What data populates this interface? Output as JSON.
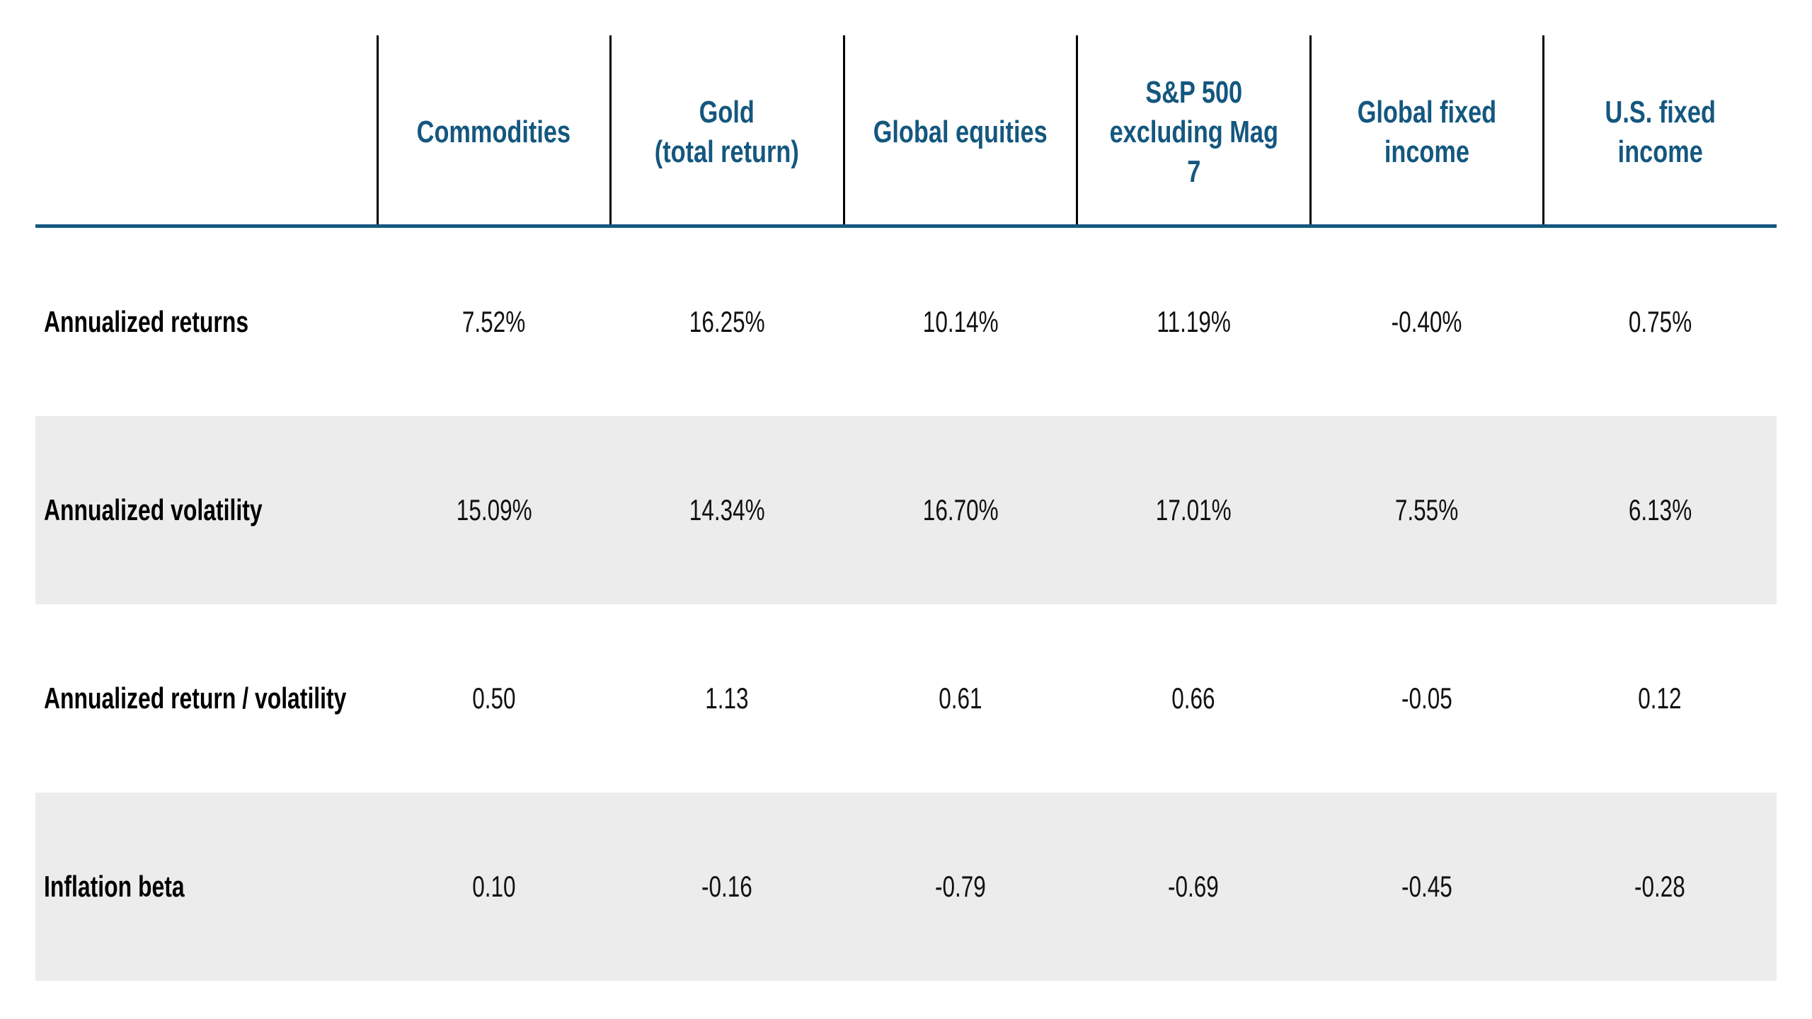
{
  "table": {
    "columns": [
      "Commodities",
      "Gold\n(total return)",
      "Global equities",
      "S&P 500\nexcluding Mag 7",
      "Global fixed\nincome",
      "U.S. fixed income"
    ],
    "rows": [
      {
        "label": "Annualized returns",
        "values": [
          "7.52%",
          "16.25%",
          "10.14%",
          "11.19%",
          "-0.40%",
          "0.75%"
        ]
      },
      {
        "label": "Annualized volatility",
        "values": [
          "15.09%",
          "14.34%",
          "16.70%",
          "17.01%",
          "7.55%",
          "6.13%"
        ]
      },
      {
        "label": "Annualized return / volatility",
        "values": [
          "0.50",
          "1.13",
          "0.61",
          "0.66",
          "-0.05",
          "0.12"
        ]
      },
      {
        "label": "Inflation beta",
        "values": [
          "0.10",
          "-0.16",
          "-0.79",
          "-0.69",
          "-0.45",
          "-0.28"
        ]
      }
    ],
    "colors": {
      "header_text_blue": "#14577F",
      "header_rule_blue": "#14577F",
      "stripe_gray": "#ECECEC",
      "divider_black": "#000000"
    }
  }
}
